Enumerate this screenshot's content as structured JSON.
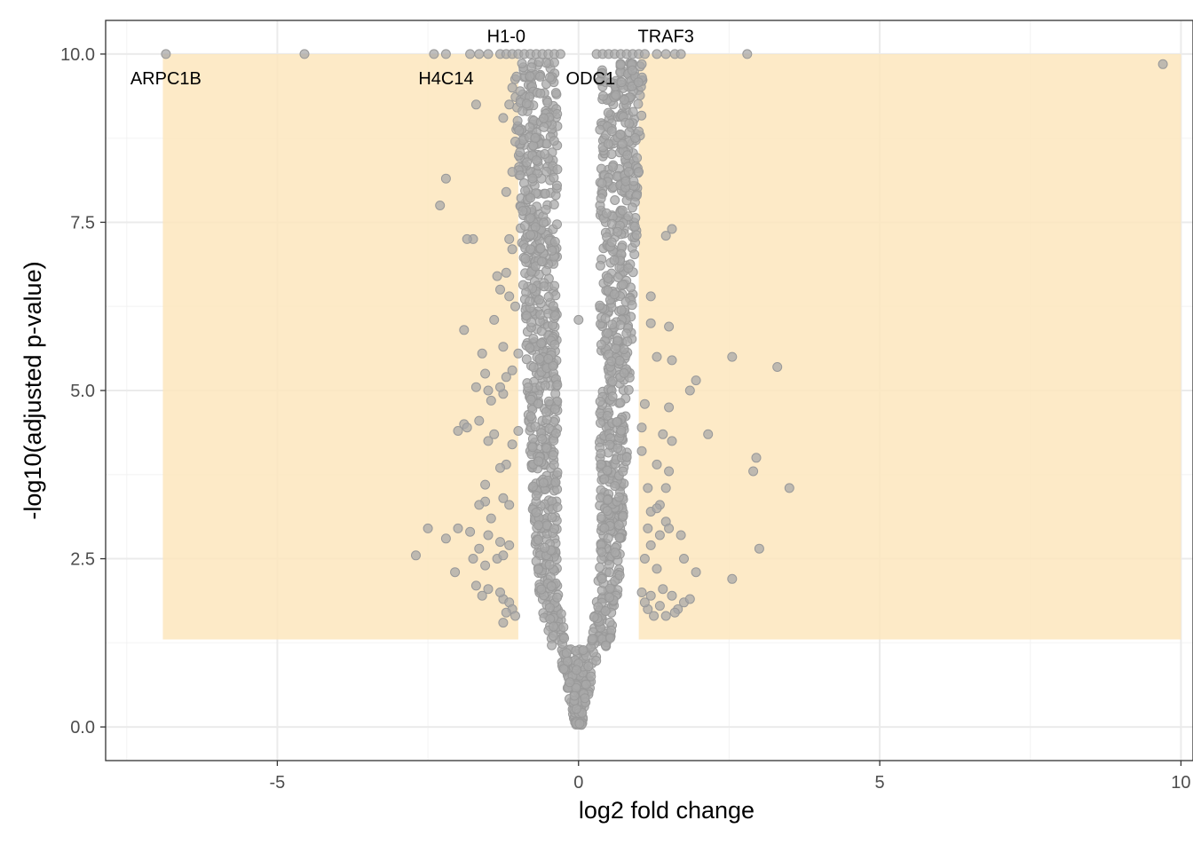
{
  "chart_data": {
    "type": "scatter",
    "title": "",
    "xlabel": "log2 fold change",
    "ylabel": "-log10(adjusted p-value)",
    "xlim": [
      -7.85,
      10.2
    ],
    "ylim": [
      -0.5,
      10.5
    ],
    "x_ticks": [
      -5,
      0,
      5,
      10
    ],
    "x_tick_labels": [
      "-5",
      "0",
      "5",
      "10"
    ],
    "y_ticks": [
      0,
      2.5,
      5,
      7.5,
      10
    ],
    "y_tick_labels": [
      "0.0",
      "2.5",
      "5.0",
      "7.5",
      "10.0"
    ],
    "grid": true,
    "legend": "none",
    "colors": {
      "point": "#a8a8a8",
      "point_edge": "#999999",
      "highlight_region": "#fde6bd",
      "grid_major": "#ebebeb",
      "grid_minor": "#f4f4f4",
      "panel_border": "#333333"
    },
    "highlight_regions": [
      {
        "x": [
          -6.9,
          -1.0
        ],
        "y": [
          1.3,
          10.0
        ]
      },
      {
        "x": [
          1.0,
          10.0
        ],
        "y": [
          1.3,
          10.0
        ]
      }
    ],
    "labeled_points": [
      {
        "label": "ARPC1B",
        "x": -6.85,
        "y": 10.0
      },
      {
        "label": "H1-0",
        "x": -1.2,
        "y": 10.0
      },
      {
        "label": "H4C14",
        "x": -2.4,
        "y": 10.0
      },
      {
        "label": "ODC1",
        "x": 0.15,
        "y": 10.0
      },
      {
        "label": "TRAF3",
        "x": 0.95,
        "y": 10.0
      }
    ],
    "points": [
      [
        -6.85,
        10.0
      ],
      [
        -4.55,
        10.0
      ],
      [
        -2.4,
        10.0
      ],
      [
        -2.2,
        10.0
      ],
      [
        -1.8,
        10.0
      ],
      [
        -1.65,
        10.0
      ],
      [
        -1.5,
        10.0
      ],
      [
        -1.3,
        10.0
      ],
      [
        -1.2,
        10.0
      ],
      [
        -1.1,
        10.0
      ],
      [
        -1.0,
        10.0
      ],
      [
        -0.9,
        10.0
      ],
      [
        -0.8,
        10.0
      ],
      [
        -0.7,
        10.0
      ],
      [
        -0.6,
        10.0
      ],
      [
        -0.5,
        10.0
      ],
      [
        -0.4,
        10.0
      ],
      [
        -0.3,
        10.0
      ],
      [
        0.3,
        10.0
      ],
      [
        0.4,
        10.0
      ],
      [
        0.5,
        10.0
      ],
      [
        0.6,
        10.0
      ],
      [
        0.7,
        10.0
      ],
      [
        0.8,
        10.0
      ],
      [
        0.9,
        10.0
      ],
      [
        1.0,
        10.0
      ],
      [
        1.1,
        10.0
      ],
      [
        1.3,
        10.0
      ],
      [
        1.45,
        10.0
      ],
      [
        1.6,
        10.0
      ],
      [
        1.7,
        10.0
      ],
      [
        2.8,
        10.0
      ],
      [
        9.7,
        9.85
      ],
      [
        -1.1,
        9.5
      ],
      [
        -1.15,
        9.25
      ],
      [
        -1.7,
        9.25
      ],
      [
        -1.25,
        9.05
      ],
      [
        -1.05,
        8.7
      ],
      [
        -1.1,
        8.25
      ],
      [
        -1.2,
        7.95
      ],
      [
        -2.2,
        8.15
      ],
      [
        -2.3,
        7.75
      ],
      [
        -1.75,
        7.25
      ],
      [
        -1.85,
        7.25
      ],
      [
        -1.15,
        7.25
      ],
      [
        -1.1,
        7.1
      ],
      [
        -1.35,
        6.7
      ],
      [
        -1.2,
        6.75
      ],
      [
        -1.3,
        6.5
      ],
      [
        -1.15,
        6.4
      ],
      [
        -1.05,
        6.25
      ],
      [
        -1.4,
        6.05
      ],
      [
        -1.9,
        5.9
      ],
      [
        -1.25,
        5.65
      ],
      [
        -1.6,
        5.55
      ],
      [
        -1.0,
        5.55
      ],
      [
        -1.1,
        5.3
      ],
      [
        -1.2,
        5.2
      ],
      [
        -1.55,
        5.25
      ],
      [
        -1.25,
        4.95
      ],
      [
        -1.3,
        5.05
      ],
      [
        -1.45,
        4.85
      ],
      [
        -1.5,
        5.0
      ],
      [
        -1.7,
        5.05
      ],
      [
        -1.9,
        4.5
      ],
      [
        -1.65,
        4.55
      ],
      [
        -2.0,
        4.4
      ],
      [
        -1.85,
        4.45
      ],
      [
        -1.5,
        4.25
      ],
      [
        -1.4,
        4.35
      ],
      [
        -1.0,
        4.4
      ],
      [
        -1.1,
        4.2
      ],
      [
        -1.2,
        3.9
      ],
      [
        -1.3,
        3.85
      ],
      [
        -1.55,
        3.6
      ],
      [
        -1.25,
        3.4
      ],
      [
        -1.55,
        3.35
      ],
      [
        -1.65,
        3.3
      ],
      [
        -1.45,
        3.1
      ],
      [
        -1.15,
        3.3
      ],
      [
        -2.5,
        2.95
      ],
      [
        -2.0,
        2.95
      ],
      [
        -2.2,
        2.8
      ],
      [
        -1.8,
        2.9
      ],
      [
        -1.5,
        2.85
      ],
      [
        -1.3,
        2.75
      ],
      [
        -1.65,
        2.65
      ],
      [
        -1.75,
        2.5
      ],
      [
        -1.55,
        2.4
      ],
      [
        -1.35,
        2.5
      ],
      [
        -1.25,
        2.55
      ],
      [
        -1.15,
        2.7
      ],
      [
        -2.7,
        2.55
      ],
      [
        -2.05,
        2.3
      ],
      [
        -1.7,
        2.1
      ],
      [
        -1.5,
        2.05
      ],
      [
        -1.6,
        1.95
      ],
      [
        -1.25,
        1.9
      ],
      [
        -1.15,
        1.85
      ],
      [
        -1.1,
        1.75
      ],
      [
        -1.05,
        1.65
      ],
      [
        -1.25,
        1.55
      ],
      [
        -1.2,
        1.7
      ],
      [
        -1.3,
        2.0
      ],
      [
        1.05,
        9.85
      ],
      [
        1.0,
        8.25
      ],
      [
        1.45,
        7.3
      ],
      [
        1.55,
        7.4
      ],
      [
        1.2,
        6.4
      ],
      [
        1.2,
        6.0
      ],
      [
        1.5,
        5.95
      ],
      [
        1.3,
        5.5
      ],
      [
        1.55,
        5.45
      ],
      [
        2.55,
        5.5
      ],
      [
        3.3,
        5.35
      ],
      [
        1.95,
        5.15
      ],
      [
        1.85,
        5.0
      ],
      [
        1.1,
        4.8
      ],
      [
        1.5,
        4.75
      ],
      [
        1.05,
        4.45
      ],
      [
        1.4,
        4.35
      ],
      [
        1.55,
        4.25
      ],
      [
        2.15,
        4.35
      ],
      [
        1.05,
        4.1
      ],
      [
        1.3,
        3.9
      ],
      [
        1.5,
        3.8
      ],
      [
        2.95,
        4.0
      ],
      [
        2.9,
        3.8
      ],
      [
        3.5,
        3.55
      ],
      [
        1.15,
        3.55
      ],
      [
        1.45,
        3.55
      ],
      [
        1.35,
        3.3
      ],
      [
        1.2,
        3.2
      ],
      [
        1.3,
        3.25
      ],
      [
        1.15,
        2.95
      ],
      [
        1.45,
        3.05
      ],
      [
        1.35,
        2.85
      ],
      [
        1.7,
        2.85
      ],
      [
        1.5,
        2.95
      ],
      [
        1.2,
        2.7
      ],
      [
        1.1,
        2.5
      ],
      [
        1.75,
        2.5
      ],
      [
        3.0,
        2.65
      ],
      [
        1.95,
        2.3
      ],
      [
        1.3,
        2.35
      ],
      [
        2.55,
        2.2
      ],
      [
        1.4,
        2.05
      ],
      [
        1.55,
        1.95
      ],
      [
        1.75,
        1.85
      ],
      [
        1.85,
        1.9
      ],
      [
        1.65,
        1.75
      ],
      [
        1.6,
        1.7
      ],
      [
        1.45,
        1.65
      ],
      [
        1.25,
        1.65
      ],
      [
        1.15,
        1.75
      ],
      [
        1.1,
        1.85
      ],
      [
        1.05,
        2.0
      ],
      [
        1.2,
        1.95
      ],
      [
        1.35,
        1.8
      ],
      [
        0.0,
        6.05
      ]
    ]
  }
}
